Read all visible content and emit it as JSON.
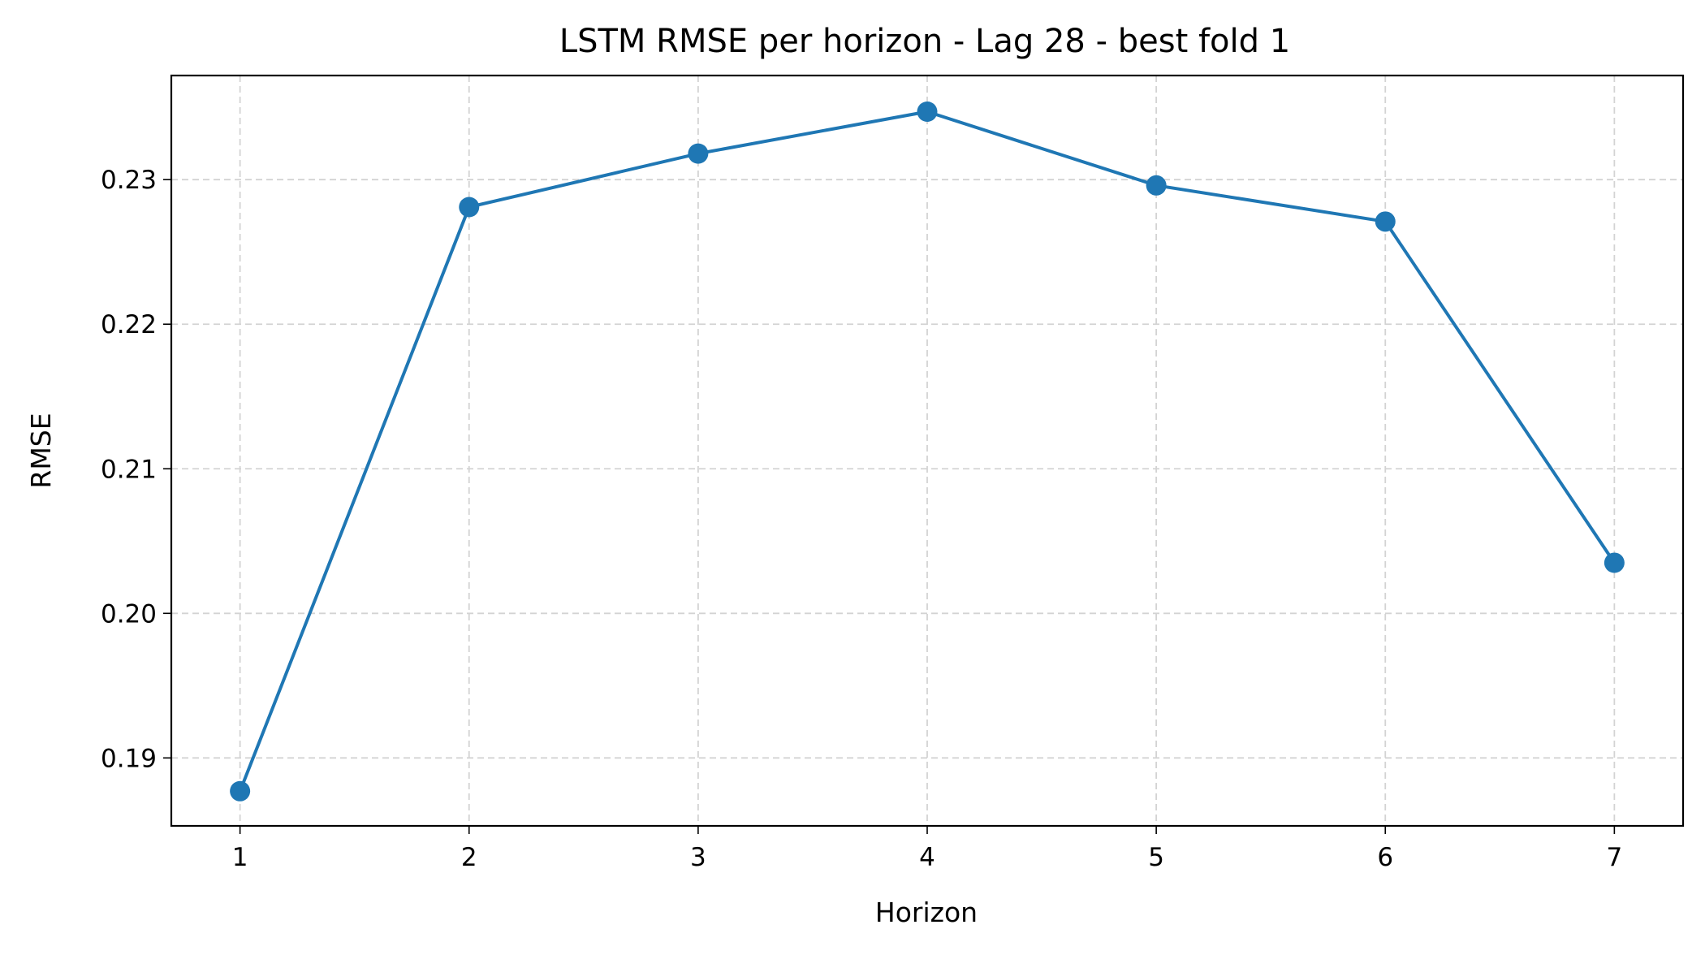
{
  "chart_data": {
    "type": "line",
    "title": "LSTM RMSE per horizon - Lag 28 - best fold 1",
    "xlabel": "Horizon",
    "ylabel": "RMSE",
    "x": [
      1,
      2,
      3,
      4,
      5,
      6,
      7
    ],
    "x_ticks": [
      "1",
      "2",
      "3",
      "4",
      "5",
      "6",
      "7"
    ],
    "xlim": [
      0.7,
      7.3
    ],
    "y_ticks": [
      "0.19",
      "0.20",
      "0.21",
      "0.22",
      "0.23"
    ],
    "ylim": [
      0.1853,
      0.2372
    ],
    "grid": true,
    "marker": "circle",
    "series": [
      {
        "values": [
          0.1877,
          0.2281,
          0.2318,
          0.2347,
          0.2296,
          0.2271,
          0.2035
        ],
        "color": "#1f77b4"
      }
    ]
  }
}
